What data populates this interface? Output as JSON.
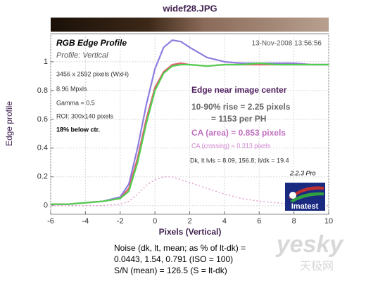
{
  "chart_data": {
    "type": "line",
    "title": "widef28.JPG",
    "profile_title": "RGB Edge Profile",
    "profile_subtitle": "Profile: Vertical",
    "timestamp": "13-Nov-2008 13:56:56",
    "info_lines": [
      "3456 x 2592 pixels (WxH)",
      "8.96 Mpxls",
      "Gamma = 0.5",
      "ROI: 300x140 pixels",
      "18% below ctr."
    ],
    "result_heading": "Edge near image center",
    "rise_lines": [
      "10-90% rise = 2.25 pixels",
      "= 1153 per PH"
    ],
    "ca_area": "CA (area) = 0.853 pixels",
    "ca_crossing": "CA (crossing) = 0.313 pixels",
    "levels": "Dk, lt lvls = 8.09, 156.8;  lt/dk = 19.4",
    "version": "2.2.3  Pro",
    "logo": "Imatest",
    "xlabel": "Pixels (Vertical)",
    "ylabel": "Edge profile",
    "noise_lines": [
      "Noise (dk, lt, mean; as % of lt-dk) =",
      "0.0443,  1.54,  0.791  (ISO =  100)",
      "S/N (mean) = 126.5  (S = lt-dk)"
    ],
    "watermark": [
      "yesky",
      "天极网"
    ],
    "x": [
      -6,
      -5,
      -4,
      -3,
      -2,
      -1.5,
      -1,
      -0.5,
      0,
      0.5,
      1,
      1.5,
      2,
      3,
      4,
      5,
      6,
      7,
      8,
      9,
      10
    ],
    "series": [
      {
        "color": "#8c7ee0",
        "values": [
          0.01,
          0.01,
          0.02,
          0.03,
          0.06,
          0.15,
          0.4,
          0.7,
          0.95,
          1.1,
          1.15,
          1.14,
          1.1,
          1.03,
          1.0,
          0.99,
          0.99,
          0.99,
          0.99,
          0.98,
          0.98
        ]
      },
      {
        "color": "#e06070",
        "values": [
          0.01,
          0.01,
          0.02,
          0.03,
          0.05,
          0.12,
          0.33,
          0.6,
          0.82,
          0.93,
          0.98,
          0.99,
          0.98,
          0.97,
          0.98,
          0.98,
          0.98,
          0.98,
          0.98,
          0.98,
          0.98
        ]
      },
      {
        "color": "#50d050",
        "values": [
          0.01,
          0.01,
          0.02,
          0.03,
          0.05,
          0.1,
          0.3,
          0.57,
          0.8,
          0.92,
          0.97,
          0.98,
          0.98,
          0.97,
          0.98,
          0.98,
          0.99,
          0.98,
          0.98,
          0.98,
          0.98
        ]
      },
      {
        "color": "#e0a0d0",
        "dashed": true,
        "values": [
          0,
          0,
          0,
          0,
          0.01,
          0.03,
          0.08,
          0.14,
          0.18,
          0.2,
          0.2,
          0.18,
          0.16,
          0.12,
          0.08,
          0.05,
          0.03,
          0.02,
          0.01,
          0.01,
          0
        ]
      }
    ],
    "xlim": [
      -6,
      10
    ],
    "xticks": [
      -6,
      -4,
      -2,
      0,
      2,
      4,
      6,
      8,
      10
    ],
    "ylim": [
      -0.06,
      1.195
    ],
    "yticks": [
      0,
      0.2,
      0.4,
      0.6,
      0.8,
      1
    ],
    "grid": true
  }
}
